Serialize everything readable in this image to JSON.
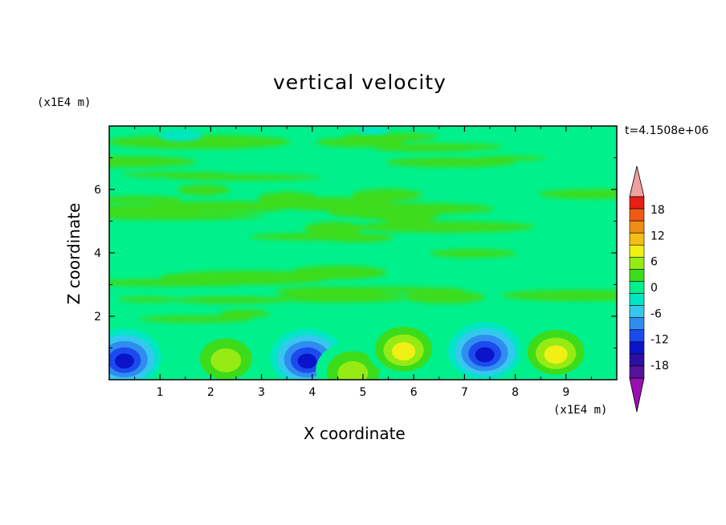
{
  "chart_data": {
    "type": "heatmap",
    "title": "vertical velocity",
    "xlabel": "X coordinate",
    "ylabel": "Z coordinate",
    "x_unit": "(x1E4 m)",
    "y_unit": "(x1E4 m)",
    "time_label": "t=4.1508e+06",
    "xlim": [
      0,
      10
    ],
    "ylim": [
      0,
      8
    ],
    "x_ticks": [
      1,
      2,
      3,
      4,
      5,
      6,
      7,
      8,
      9
    ],
    "y_ticks": [
      2,
      4,
      6
    ],
    "colorbar": {
      "ticks": [
        18,
        12,
        6,
        0,
        -6,
        -12,
        -18
      ],
      "levels": [
        -21,
        -18,
        -15,
        -12,
        -9,
        -6,
        -3,
        0,
        3,
        6,
        9,
        12,
        15,
        18,
        21
      ],
      "colors": [
        "#9a0fb0",
        "#54149a",
        "#2c0fa5",
        "#0b14c8",
        "#1b4bee",
        "#2f8df0",
        "#35c8ee",
        "#00e6c4",
        "#00f08c",
        "#3cdc1a",
        "#96eb14",
        "#f0f014",
        "#f5be14",
        "#f08c14",
        "#f05a14",
        "#e61e14",
        "#f0a0a0"
      ]
    },
    "features": [
      {
        "x": 0.3,
        "z": 0.7,
        "w": -16,
        "type": "downdraft"
      },
      {
        "x": 2.3,
        "z": 0.7,
        "w": 9,
        "type": "updraft"
      },
      {
        "x": 3.9,
        "z": 0.7,
        "w": -16,
        "type": "downdraft"
      },
      {
        "x": 4.8,
        "z": 0.3,
        "w": 9,
        "type": "updraft"
      },
      {
        "x": 5.8,
        "z": 1.0,
        "w": 12,
        "type": "updraft"
      },
      {
        "x": 7.4,
        "z": 0.9,
        "w": -16,
        "type": "downdraft"
      },
      {
        "x": 8.8,
        "z": 0.9,
        "w": 12,
        "type": "updraft"
      }
    ]
  }
}
